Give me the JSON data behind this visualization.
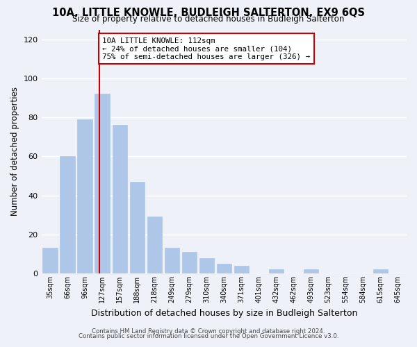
{
  "title": "10A, LITTLE KNOWLE, BUDLEIGH SALTERTON, EX9 6QS",
  "subtitle": "Size of property relative to detached houses in Budleigh Salterton",
  "xlabel": "Distribution of detached houses by size in Budleigh Salterton",
  "ylabel": "Number of detached properties",
  "bar_labels": [
    "35sqm",
    "66sqm",
    "96sqm",
    "127sqm",
    "157sqm",
    "188sqm",
    "218sqm",
    "249sqm",
    "279sqm",
    "310sqm",
    "340sqm",
    "371sqm",
    "401sqm",
    "432sqm",
    "462sqm",
    "493sqm",
    "523sqm",
    "554sqm",
    "584sqm",
    "615sqm",
    "645sqm"
  ],
  "bar_values": [
    13,
    60,
    79,
    92,
    76,
    47,
    29,
    13,
    11,
    8,
    5,
    4,
    0,
    2,
    0,
    2,
    0,
    0,
    0,
    2,
    0
  ],
  "bar_color": "#aec6e8",
  "bar_edge_color": "#aec6e8",
  "vline_color": "#cc0000",
  "annotation_text": "10A LITTLE KNOWLE: 112sqm\n← 24% of detached houses are smaller (104)\n75% of semi-detached houses are larger (326) →",
  "annotation_box_color": "#ffffff",
  "annotation_box_edge": "#cc0000",
  "ylim": [
    0,
    125
  ],
  "yticks": [
    0,
    20,
    40,
    60,
    80,
    100,
    120
  ],
  "footer1": "Contains HM Land Registry data © Crown copyright and database right 2024.",
  "footer2": "Contains public sector information licensed under the Open Government Licence v3.0.",
  "bg_color": "#eef2f8",
  "grid_color": "#ffffff"
}
